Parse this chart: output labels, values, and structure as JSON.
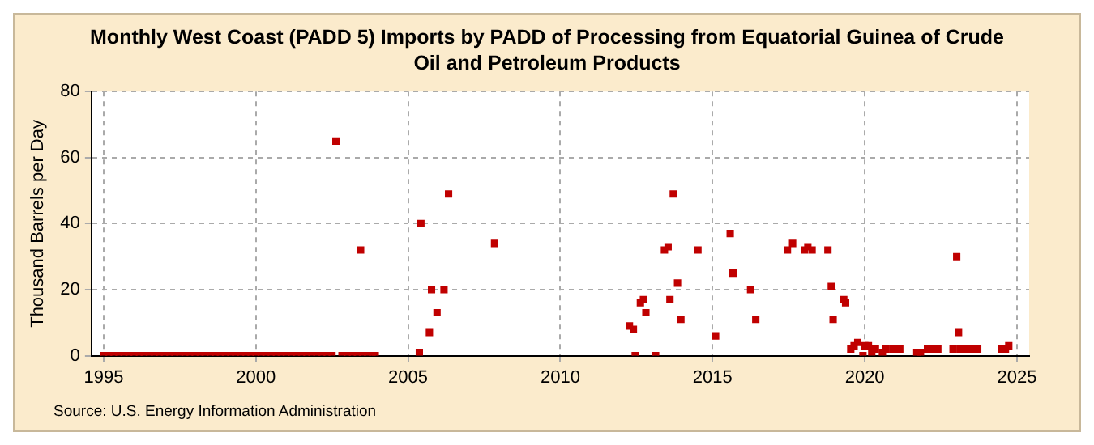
{
  "chart_data": {
    "type": "scatter",
    "title": "Monthly West Coast (PADD 5) Imports by PADD of Processing from Equatorial Guinea of Crude Oil and Petroleum Products",
    "ylabel": "Thousand Barrels per Day",
    "annotations": [
      "Source: U.S. Energy Information Administration"
    ],
    "xlim": [
      1994.6,
      2025.4
    ],
    "xticks": [
      1995,
      2000,
      2005,
      2010,
      2015,
      2020,
      2025
    ],
    "ylim": [
      0,
      80
    ],
    "yticks": [
      0,
      20,
      40,
      60,
      80
    ],
    "grid": true,
    "legend": false,
    "marker": "square",
    "series": [
      {
        "color": "#c00000",
        "x": [
          1995.0,
          1995.17,
          1995.33,
          1995.5,
          1995.67,
          1995.83,
          1996.0,
          1996.17,
          1996.33,
          1996.5,
          1996.67,
          1996.83,
          1997.0,
          1997.17,
          1997.33,
          1997.5,
          1997.67,
          1997.83,
          1998.0,
          1998.17,
          1998.33,
          1998.5,
          1998.67,
          1998.83,
          1999.0,
          1999.17,
          1999.33,
          1999.5,
          1999.67,
          1999.83,
          2000.0,
          2000.17,
          2000.33,
          2000.5,
          2000.67,
          2000.83,
          2001.0,
          2001.17,
          2001.33,
          2001.5,
          2001.67,
          2001.83,
          2002.0,
          2002.17,
          2002.33,
          2002.5,
          2002.63,
          2002.83,
          2003.0,
          2003.17,
          2003.33,
          2003.44,
          2003.5,
          2003.67,
          2003.83,
          2003.92,
          2005.37,
          2005.42,
          2005.7,
          2005.77,
          2005.95,
          2006.18,
          2006.33,
          2007.84,
          2012.27,
          2012.4,
          2012.46,
          2012.63,
          2012.73,
          2012.81,
          2013.13,
          2013.42,
          2013.54,
          2013.6,
          2013.71,
          2013.85,
          2013.96,
          2014.52,
          2015.1,
          2015.58,
          2015.67,
          2016.25,
          2016.42,
          2017.46,
          2017.63,
          2018.02,
          2018.13,
          2018.27,
          2018.79,
          2018.9,
          2018.96,
          2019.31,
          2019.37,
          2019.54,
          2019.65,
          2019.77,
          2019.94,
          2020.0,
          2020.12,
          2020.23,
          2020.35,
          2020.58,
          2020.69,
          2020.92,
          2021.15,
          2021.71,
          2021.83,
          2022.06,
          2022.23,
          2022.4,
          2022.9,
          2023.02,
          2023.08,
          2023.13,
          2023.32,
          2023.52,
          2023.71,
          2024.5,
          2024.62,
          2024.73
        ],
        "values": [
          0,
          0,
          0,
          0,
          0,
          0,
          0,
          0,
          0,
          0,
          0,
          0,
          0,
          0,
          0,
          0,
          0,
          0,
          0,
          0,
          0,
          0,
          0,
          0,
          0,
          0,
          0,
          0,
          0,
          0,
          0,
          0,
          0,
          0,
          0,
          0,
          0,
          0,
          0,
          0,
          0,
          0,
          0,
          0,
          0,
          0,
          65,
          0,
          0,
          0,
          0,
          32,
          0,
          0,
          0,
          0,
          1,
          40,
          7,
          20,
          13,
          20,
          49,
          34,
          9,
          8,
          0,
          16,
          17,
          13,
          0,
          32,
          33,
          17,
          49,
          22,
          11,
          32,
          6,
          37,
          25,
          20,
          11,
          32,
          34,
          32,
          33,
          32,
          32,
          21,
          11,
          17,
          16,
          2,
          3,
          4,
          0,
          3,
          3,
          1,
          2,
          1,
          2,
          2,
          2,
          1,
          1,
          2,
          2,
          2,
          2,
          30,
          7,
          2,
          2,
          2,
          2,
          2,
          2,
          3
        ]
      }
    ]
  }
}
